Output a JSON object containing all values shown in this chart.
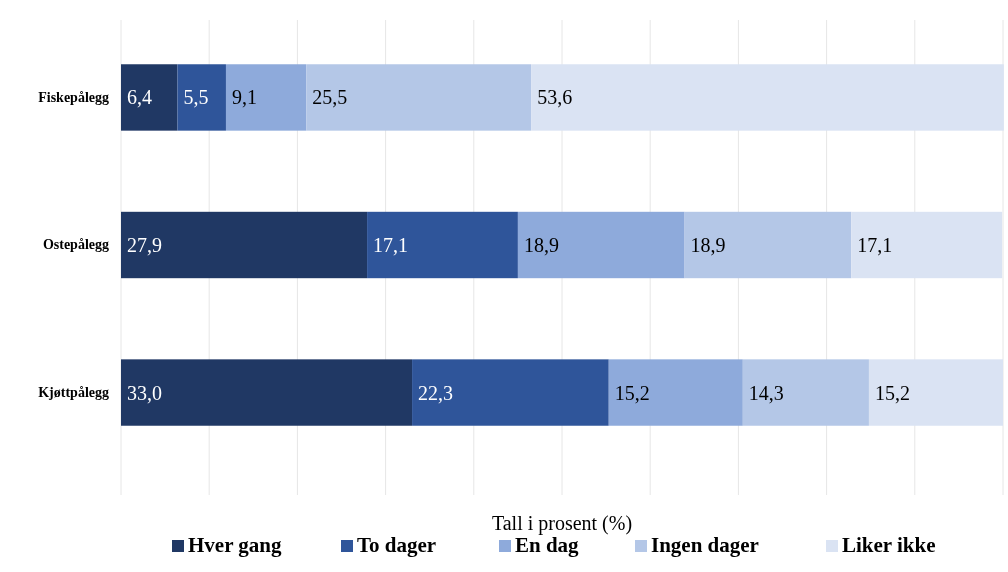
{
  "chart_data": {
    "type": "bar",
    "orientation": "horizontal",
    "stacked": true,
    "xlabel": "Tall i prosent (%)",
    "categories": [
      "Fiskepålegg",
      "Ostepålegg",
      "Kjøttpålegg"
    ],
    "series": [
      {
        "name": "Hver gang",
        "color": "#203864",
        "values": [
          6.4,
          27.9,
          33.0
        ],
        "value_labels": [
          "6,4",
          "27,9",
          "33,0"
        ]
      },
      {
        "name": "To dager",
        "color": "#2f559a",
        "values": [
          5.5,
          17.1,
          22.3
        ],
        "value_labels": [
          "5,5",
          "17,1",
          "22,3"
        ]
      },
      {
        "name": "En dag",
        "color": "#8eaadb",
        "values": [
          9.1,
          18.9,
          15.2
        ],
        "value_labels": [
          "9,1",
          "18,9",
          "15,2"
        ]
      },
      {
        "name": "Ingen dager",
        "color": "#b4c7e7",
        "values": [
          25.5,
          18.9,
          14.3
        ],
        "value_labels": [
          "25,5",
          "18,9",
          "14,3"
        ]
      },
      {
        "name": "Liker ikke",
        "color": "#dae3f3",
        "values": [
          53.6,
          17.1,
          15.2
        ],
        "value_labels": [
          "53,6",
          "17,1",
          "15,2"
        ]
      }
    ],
    "xlim": [
      0,
      100
    ],
    "xticks": [
      {
        "value": 0,
        "label": null
      },
      {
        "value": 10,
        "label": null
      },
      {
        "value": 20,
        "label": null
      },
      {
        "value": 30,
        "label": null
      },
      {
        "value": 40,
        "label": null
      },
      {
        "value": 50,
        "label": null
      },
      {
        "value": 60,
        "label": null
      },
      {
        "value": 70,
        "label": null
      },
      {
        "value": 80,
        "label": null
      },
      {
        "value": 90,
        "label": null
      },
      {
        "value": 100,
        "label": null
      }
    ],
    "grid": "x",
    "tick_labels": "y",
    "legend": "bottom"
  }
}
